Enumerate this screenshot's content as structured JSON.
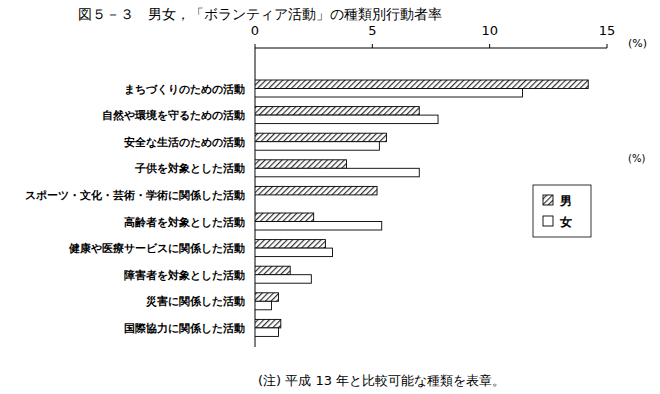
{
  "chart_data": {
    "type": "bar",
    "orientation": "horizontal",
    "title": "図５－３　男女，「ボランティア活動」の種類別行動者率",
    "xlabel": "(%)",
    "categories": [
      "まちづくりのための活動",
      "自然や環境を守るための活動",
      "安全な生活のための活動",
      "子供を対象とした活動",
      "スポーツ・文化・芸術・学術に関係した活動",
      "高齢者を対象とした活動",
      "健康や医療サービスに関係した活動",
      "障害者を対象とした活動",
      "災害に関係した活動",
      "国際協力に関係した活動"
    ],
    "series": [
      {
        "name": "男",
        "color": "#333333",
        "values": [
          14.2,
          7.0,
          5.6,
          3.9,
          5.2,
          2.5,
          3.0,
          1.5,
          1.0,
          1.1
        ]
      },
      {
        "name": "女",
        "color": "#ffffff",
        "values": [
          11.4,
          7.8,
          5.3,
          7.0,
          null,
          5.4,
          3.3,
          2.4,
          0.7,
          1.0
        ]
      }
    ],
    "xlim": [
      0,
      15
    ],
    "xticks": [
      0,
      5,
      10,
      15
    ],
    "grid": false,
    "legend": "right",
    "annotations": [
      "(%)",
      "(注) 平成 13 年と比較可能な種類を表章。"
    ]
  }
}
